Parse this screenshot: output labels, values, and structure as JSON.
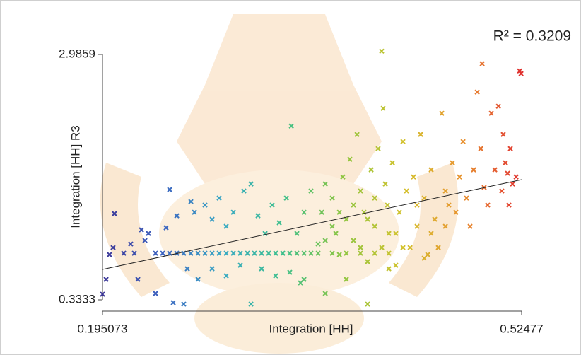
{
  "chart_data": {
    "type": "scatter",
    "annotation": "R² = 0.3209",
    "x_label": "Integration [HH]",
    "y_label": "Integration [HH] R3",
    "xlim": [
      0.195073,
      0.52477
    ],
    "ylim": [
      0.3333,
      2.9859
    ],
    "xticks": [
      0.195073,
      0.52477
    ],
    "yticks": [
      0.3333,
      2.9859
    ],
    "colorscale": [
      "#3b3596",
      "#3a62c0",
      "#37a8c4",
      "#3cbf8c",
      "#8cc540",
      "#d2c22b",
      "#e8922e",
      "#e0302f"
    ],
    "trendline": {
      "x": [
        0.195073,
        0.52477
      ],
      "y": [
        0.662,
        1.633
      ],
      "color": "#222222"
    },
    "x": [
      0.1951,
      0.1979,
      0.2006,
      0.2045,
      0.2034,
      0.2118,
      0.2173,
      0.2201,
      0.2257,
      0.2285,
      0.2312,
      0.2229,
      0.2368,
      0.2507,
      0.259,
      0.2451,
      0.2535,
      0.2368,
      0.2424,
      0.2479,
      0.2535,
      0.259,
      0.2646,
      0.2702,
      0.2757,
      0.2813,
      0.2868,
      0.2924,
      0.298,
      0.3035,
      0.3091,
      0.3146,
      0.3202,
      0.3258,
      0.3313,
      0.3369,
      0.3424,
      0.348,
      0.3536,
      0.3591,
      0.2479,
      0.2646,
      0.2674,
      0.2757,
      0.2813,
      0.2868,
      0.2924,
      0.298,
      0.3063,
      0.3119,
      0.3174,
      0.323,
      0.3285,
      0.3341,
      0.3397,
      0.3436,
      0.348,
      0.3536,
      0.3591,
      0.2618,
      0.2702,
      0.2813,
      0.2924,
      0.3035,
      0.3119,
      0.3202,
      0.3313,
      0.3424,
      0.3508,
      0.3647,
      0.3675,
      0.3703,
      0.3758,
      0.3786,
      0.3814,
      0.3841,
      0.3869,
      0.3897,
      0.3925,
      0.3953,
      0.398,
      0.4008,
      0.4036,
      0.4064,
      0.4092,
      0.4119,
      0.4147,
      0.4175,
      0.4192,
      0.4203,
      0.4231,
      0.4258,
      0.4286,
      0.4314,
      0.4342,
      0.437,
      0.4397,
      0.4425,
      0.4453,
      0.4481,
      0.4509,
      0.4536,
      0.4564,
      0.4592,
      0.462,
      0.4648,
      0.4675,
      0.4703,
      0.4731,
      0.4759,
      0.4787,
      0.4814,
      0.4842,
      0.487,
      0.4898,
      0.4926,
      0.4953,
      0.4981,
      0.5009,
      0.5037,
      0.5065,
      0.5092,
      0.5103,
      0.512,
      0.5137,
      0.5148,
      0.5159,
      0.5176,
      0.5204,
      0.5232,
      0.5243,
      0.4147,
      0.4158,
      0.4937,
      0.3536,
      0.4036,
      0.3703,
      0.3869,
      0.4258,
      0.4481,
      0.3703,
      0.3758,
      0.3814,
      0.3925,
      0.398,
      0.4036,
      0.4092,
      0.4203,
      0.4314,
      0.4425,
      0.4536,
      0.4648,
      0.3647,
      0.3758,
      0.3869,
      0.398,
      0.4092,
      0.4203
    ],
    "y": [
      0.394,
      0.555,
      0.822,
      1.265,
      0.898,
      0.837,
      0.937,
      0.837,
      1.09,
      0.975,
      1.051,
      0.555,
      0.402,
      0.302,
      0.287,
      1.112,
      1.242,
      0.837,
      0.837,
      0.837,
      0.837,
      0.837,
      0.837,
      0.837,
      0.837,
      0.837,
      0.837,
      0.837,
      0.837,
      0.837,
      0.837,
      0.837,
      0.837,
      0.837,
      0.837,
      0.837,
      0.837,
      0.837,
      0.837,
      0.837,
      1.525,
      1.395,
      1.28,
      1.357,
      1.204,
      1.433,
      1.128,
      1.28,
      1.51,
      1.586,
      1.242,
      1.051,
      1.357,
      1.166,
      1.433,
      2.212,
      1.051,
      1.28,
      1.51,
      0.669,
      0.555,
      0.669,
      0.593,
      0.707,
      0.287,
      0.669,
      0.593,
      0.631,
      0.516,
      0.937,
      1.28,
      1.586,
      1.433,
      1.051,
      0.822,
      1.662,
      1.204,
      1.853,
      0.975,
      2.121,
      1.51,
      1.28,
      0.746,
      1.739,
      1.128,
      1.968,
      0.898,
      1.586,
      1.357,
      0.669,
      1.815,
      1.051,
      1.28,
      2.044,
      1.51,
      0.898,
      1.662,
      1.128,
      2.121,
      1.433,
      0.822,
      1.739,
      1.204,
      0.898,
      2.35,
      1.51,
      1.357,
      1.815,
      1.28,
      1.662,
      2.044,
      1.433,
      1.128,
      1.739,
      2.579,
      1.968,
      1.548,
      1.357,
      2.35,
      1.739,
      2.426,
      1.51,
      2.121,
      1.815,
      1.701,
      1.357,
      1.968,
      1.586,
      1.662,
      2.808,
      2.778,
      3.022,
      2.403,
      2.885,
      0.555,
      0.287,
      0.402,
      0.555,
      0.707,
      0.784,
      0.975,
      1.128,
      1.28,
      1.357,
      0.898,
      1.204,
      1.433,
      1.051,
      0.898,
      1.357,
      1.051,
      1.128,
      0.837,
      0.837,
      0.837,
      0.837,
      0.837,
      0.837
    ]
  }
}
